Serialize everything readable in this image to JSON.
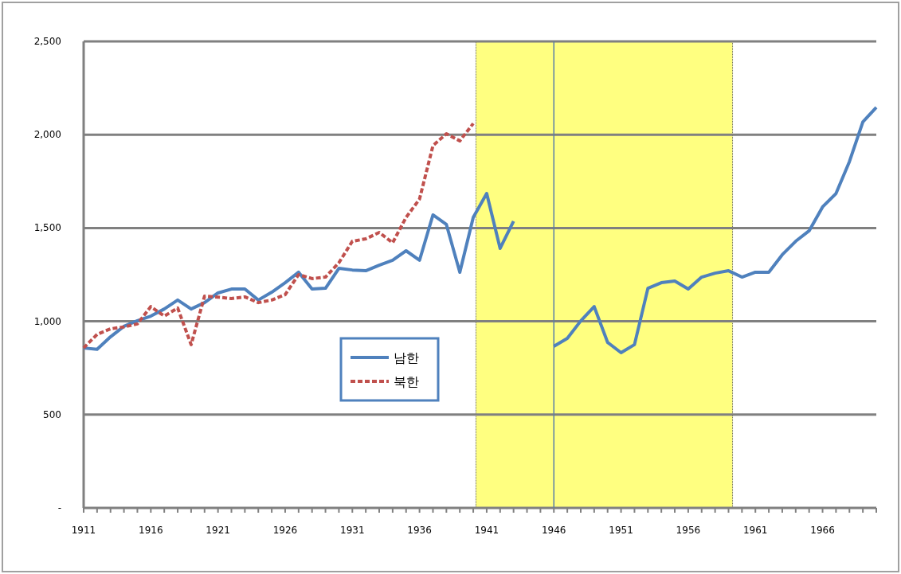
{
  "chart_data": {
    "type": "line",
    "x": [
      1911,
      1912,
      1913,
      1914,
      1915,
      1916,
      1917,
      1918,
      1919,
      1920,
      1921,
      1922,
      1923,
      1924,
      1925,
      1926,
      1927,
      1928,
      1929,
      1930,
      1931,
      1932,
      1933,
      1934,
      1935,
      1936,
      1937,
      1938,
      1939,
      1940,
      1941,
      1942,
      1943,
      1944,
      1945,
      1946,
      1947,
      1948,
      1949,
      1950,
      1951,
      1952,
      1953,
      1954,
      1955,
      1956,
      1957,
      1958,
      1959,
      1960,
      1961,
      1962,
      1963,
      1964,
      1965,
      1966,
      1967,
      1968,
      1969,
      1970
    ],
    "series": [
      {
        "name": "남한",
        "color": "#4f81bd",
        "line_style": "solid",
        "values": [
          857,
          850,
          917,
          973,
          1003,
          1028,
          1066,
          1114,
          1066,
          1100,
          1152,
          1173,
          1173,
          1114,
          1156,
          1207,
          1263,
          1173,
          1177,
          1284,
          1275,
          1271,
          1301,
          1327,
          1378,
          1327,
          1570,
          1519,
          1263,
          1557,
          1685,
          1391,
          1536,
          null,
          null,
          866,
          909,
          1002,
          1079,
          887,
          832,
          875,
          1177,
          1207,
          1216,
          1173,
          1237,
          1258,
          1271,
          1237,
          1263,
          1263,
          1357,
          1429,
          1485,
          1613,
          1685,
          1856,
          2069,
          2146
        ]
      },
      {
        "name": "북한",
        "color": "#c0504d",
        "line_style": "dashed",
        "values": [
          857,
          930,
          960,
          970,
          986,
          1079,
          1028,
          1071,
          875,
          1135,
          1130,
          1122,
          1131,
          1100,
          1114,
          1143,
          1250,
          1229,
          1237,
          1314,
          1429,
          1442,
          1476,
          1421,
          1557,
          1655,
          1941,
          2005,
          1967,
          2060,
          null,
          null,
          null,
          null,
          null,
          null,
          null,
          null,
          null,
          null,
          null,
          null,
          null,
          null,
          null,
          null,
          null,
          null,
          null,
          null,
          null,
          null,
          null,
          null,
          null,
          null,
          null,
          null,
          null,
          null
        ]
      }
    ],
    "xlim": [
      1911,
      1970
    ],
    "xticks": [
      1911,
      1916,
      1921,
      1926,
      1931,
      1936,
      1941,
      1946,
      1951,
      1956,
      1961,
      1966
    ],
    "ylim": [
      0,
      2500
    ],
    "yticks": [
      {
        "value": 0,
        "label": "-"
      },
      {
        "value": 500,
        "label": "500"
      },
      {
        "value": 1000,
        "label": "1,000"
      },
      {
        "value": 1500,
        "label": "1,500"
      },
      {
        "value": 2000,
        "label": "2,000"
      },
      {
        "value": 2500,
        "label": "2,500"
      }
    ],
    "grid": "y",
    "legend": "left",
    "bands": [
      {
        "axis": "x",
        "from": 1940.2,
        "to": 1959.3,
        "color": "#ffff80"
      }
    ],
    "ref_lines": [
      {
        "axis": "x",
        "value": 1946,
        "color": "#5b7fa6"
      }
    ]
  }
}
